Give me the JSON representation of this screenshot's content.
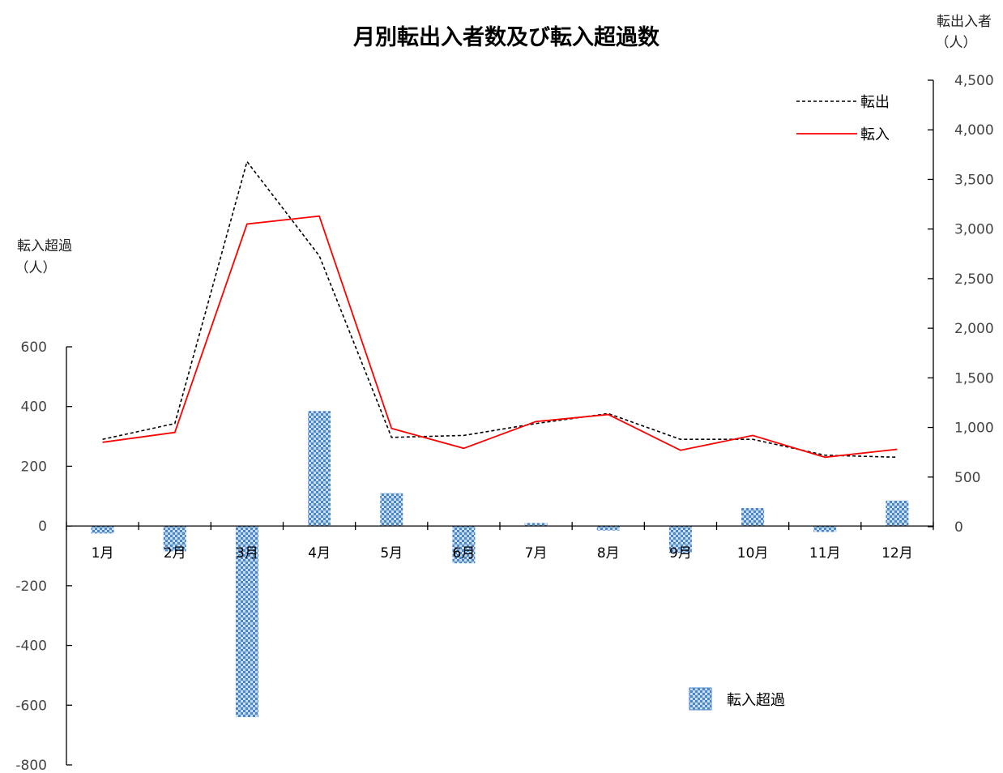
{
  "chart_data": {
    "type": "bar+line",
    "title": "月別転出入者数及び転入超過数",
    "categories": [
      "1月",
      "2月",
      "3月",
      "4月",
      "5月",
      "6月",
      "7月",
      "8月",
      "9月",
      "10月",
      "11月",
      "12月"
    ],
    "left_axis": {
      "label_line1": "転入超過",
      "label_line2": "（人）",
      "ylim": [
        -800,
        600
      ],
      "ticks": [
        "600",
        "400",
        "200",
        "0",
        "-200",
        "-400",
        "-600",
        "-800"
      ],
      "tick_values": [
        600,
        400,
        200,
        0,
        -200,
        -400,
        -600,
        -800
      ],
      "negative_tick_color": "#e00000"
    },
    "right_axis": {
      "label_line1": "転出入者",
      "label_line2": "（人）",
      "ylim": [
        0,
        4500
      ],
      "ticks": [
        "4,500",
        "4,000",
        "3,500",
        "3,000",
        "2,500",
        "2,000",
        "1,500",
        "1,000",
        "500",
        "0"
      ],
      "tick_values": [
        4500,
        4000,
        3500,
        3000,
        2500,
        2000,
        1500,
        1000,
        500,
        0
      ]
    },
    "series": [
      {
        "name": "転出",
        "axis": "right",
        "kind": "line",
        "style": "dashed",
        "color": "#000000",
        "values": [
          880,
          1040,
          3680,
          2730,
          900,
          920,
          1040,
          1140,
          880,
          880,
          720,
          700
        ]
      },
      {
        "name": "転入",
        "axis": "right",
        "kind": "line",
        "style": "solid",
        "color": "#ff0000",
        "values": [
          850,
          950,
          3050,
          3130,
          990,
          790,
          1060,
          1130,
          770,
          920,
          700,
          780
        ]
      },
      {
        "name": "転入超過",
        "axis": "left",
        "kind": "bar",
        "pattern": "checker",
        "color": "#5b9bd5",
        "values": [
          -25,
          -85,
          -640,
          385,
          110,
          -125,
          10,
          -15,
          -90,
          60,
          -20,
          85
        ]
      }
    ],
    "legend": {
      "placement_lines": "top-right",
      "placement_bars": "bottom-right",
      "items": [
        {
          "label": "転出"
        },
        {
          "label": "転入"
        },
        {
          "label": "転入超過"
        }
      ]
    }
  }
}
